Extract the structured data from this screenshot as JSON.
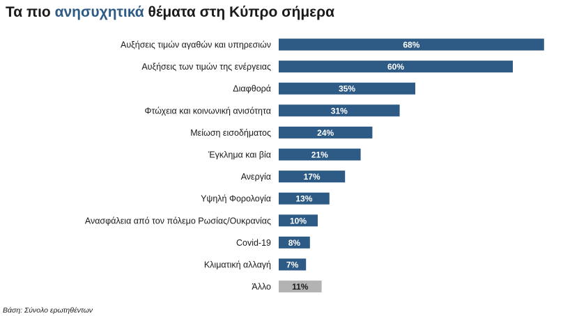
{
  "title": {
    "prefix": "Τα πιο ",
    "highlight": "ανησυχητικά",
    "suffix": " θέματα στη Κύπρο σήμερα"
  },
  "footnote": "Βάση: Σύνολο ερωτηθέντων",
  "colors": {
    "accent": "#2e5b86",
    "bar": "#2e5b86",
    "other_bar": "#b3b3b3"
  },
  "chart_data": {
    "type": "bar",
    "orientation": "horizontal",
    "categories": [
      "Αυξήσεις τιμών αγαθών και υπηρεσιών",
      "Αυξήσεις των τιμών της ενέργειας",
      "Διαφθορά",
      "Φτώχεια και κοινωνική ανισότητα",
      "Μείωση εισοδήματος",
      "Έγκλημα και βία",
      "Ανεργία",
      "Υψηλή Φορολογία",
      "Ανασφάλεια από τον πόλεμο Ρωσίας/Ουκρανίας",
      "Covid-19",
      "Κλιματική αλλαγή",
      "Άλλο"
    ],
    "values": [
      68,
      60,
      35,
      31,
      24,
      21,
      17,
      13,
      10,
      8,
      7,
      11
    ],
    "value_labels": [
      "68%",
      "60%",
      "35%",
      "31%",
      "24%",
      "21%",
      "17%",
      "13%",
      "10%",
      "8%",
      "7%",
      "11%"
    ],
    "highlighted_category": "Άλλο",
    "unit": "%",
    "grid": false,
    "legend": "none"
  }
}
